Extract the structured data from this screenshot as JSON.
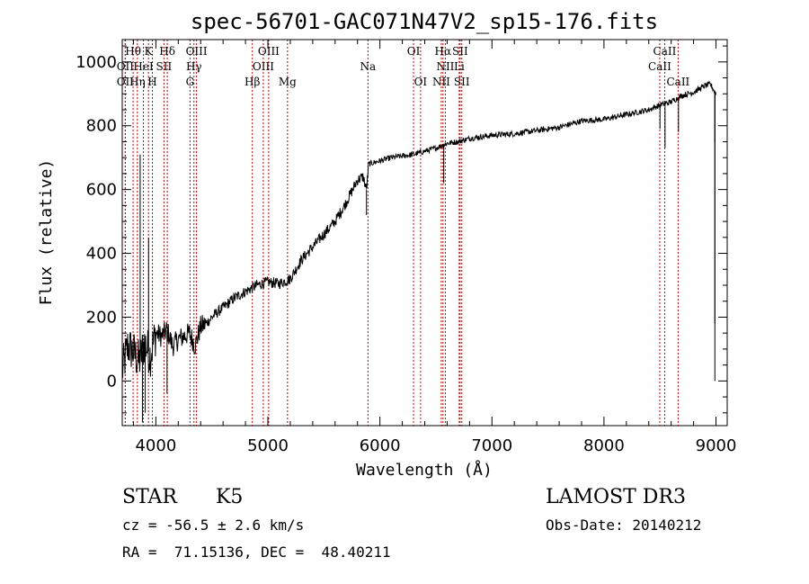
{
  "chart_data": {
    "type": "line",
    "title": "spec-56701-GAC071N47V2_sp15-176.fits",
    "xlabel": "Wavelength (Å)",
    "ylabel": "Flux (relative)",
    "xlim": [
      3700,
      9100
    ],
    "ylim": [
      -140,
      1070
    ],
    "xticks": [
      4000,
      5000,
      6000,
      7000,
      8000,
      9000
    ],
    "yticks": [
      0,
      200,
      400,
      600,
      800,
      1000
    ],
    "spectrum_anchors": [
      [
        3700,
        30
      ],
      [
        3750,
        110
      ],
      [
        3800,
        90
      ],
      [
        3850,
        60
      ],
      [
        3900,
        120
      ],
      [
        3950,
        80
      ],
      [
        4000,
        150
      ],
      [
        4050,
        140
      ],
      [
        4100,
        160
      ],
      [
        4150,
        110
      ],
      [
        4200,
        130
      ],
      [
        4250,
        140
      ],
      [
        4300,
        150
      ],
      [
        4350,
        110
      ],
      [
        4400,
        170
      ],
      [
        4450,
        180
      ],
      [
        4500,
        200
      ],
      [
        4600,
        230
      ],
      [
        4700,
        260
      ],
      [
        4800,
        280
      ],
      [
        4900,
        300
      ],
      [
        5000,
        310
      ],
      [
        5100,
        305
      ],
      [
        5200,
        320
      ],
      [
        5300,
        380
      ],
      [
        5400,
        420
      ],
      [
        5500,
        460
      ],
      [
        5600,
        500
      ],
      [
        5700,
        560
      ],
      [
        5800,
        630
      ],
      [
        5850,
        640
      ],
      [
        5880,
        600
      ],
      [
        5900,
        680
      ],
      [
        6000,
        690
      ],
      [
        6100,
        700
      ],
      [
        6200,
        705
      ],
      [
        6300,
        710
      ],
      [
        6400,
        720
      ],
      [
        6500,
        730
      ],
      [
        6600,
        745
      ],
      [
        6700,
        750
      ],
      [
        6800,
        760
      ],
      [
        6900,
        765
      ],
      [
        7000,
        770
      ],
      [
        7200,
        775
      ],
      [
        7400,
        785
      ],
      [
        7600,
        795
      ],
      [
        7800,
        815
      ],
      [
        8000,
        820
      ],
      [
        8200,
        835
      ],
      [
        8400,
        850
      ],
      [
        8500,
        865
      ],
      [
        8600,
        875
      ],
      [
        8700,
        895
      ],
      [
        8800,
        905
      ],
      [
        8900,
        925
      ],
      [
        8950,
        930
      ],
      [
        9000,
        900
      ]
    ],
    "spikes": [
      [
        3860,
        710
      ],
      [
        3880,
        -130
      ],
      [
        3905,
        -100
      ],
      [
        3935,
        450
      ],
      [
        4100,
        -40
      ],
      [
        5880,
        520
      ],
      [
        6570,
        620
      ],
      [
        8500,
        790
      ],
      [
        8545,
        730
      ],
      [
        8665,
        780
      ],
      [
        8990,
        750
      ],
      [
        8990,
        0
      ],
      [
        8990,
        180
      ]
    ],
    "emission_lines": [
      {
        "label": "Hθ",
        "wavelength": 3797,
        "row": 0
      },
      {
        "label": "OII",
        "wavelength": 3727,
        "row": 1
      },
      {
        "label": "OII",
        "wavelength": 3727,
        "row": 2
      },
      {
        "label": "Hη",
        "wavelength": 3835,
        "row": 2
      },
      {
        "label": "HeI",
        "wavelength": 3889,
        "row": 1
      },
      {
        "label": "K",
        "wavelength": 3934,
        "row": 0
      },
      {
        "label": "H",
        "wavelength": 3969,
        "row": 2
      },
      {
        "label": "SII",
        "wavelength": 4072,
        "row": 1
      },
      {
        "label": "Hδ",
        "wavelength": 4102,
        "row": 0
      },
      {
        "label": "OIII",
        "wavelength": 4363,
        "row": 0
      },
      {
        "label": "Hγ",
        "wavelength": 4340,
        "row": 1
      },
      {
        "label": "G",
        "wavelength": 4305,
        "row": 2
      },
      {
        "label": "OIII",
        "wavelength": 5007,
        "row": 0
      },
      {
        "label": "OIII",
        "wavelength": 4959,
        "row": 1
      },
      {
        "label": "Hβ",
        "wavelength": 4861,
        "row": 2
      },
      {
        "label": "Mg",
        "wavelength": 5175,
        "row": 2
      },
      {
        "label": "Na",
        "wavelength": 5893,
        "row": 1
      },
      {
        "label": "OI",
        "wavelength": 6300,
        "row": 0
      },
      {
        "label": "OI",
        "wavelength": 6363,
        "row": 2
      },
      {
        "label": "Hα",
        "wavelength": 6563,
        "row": 0
      },
      {
        "label": "SII",
        "wavelength": 6716,
        "row": 0
      },
      {
        "label": "NII",
        "wavelength": 6584,
        "row": 1
      },
      {
        "label": "Li",
        "wavelength": 6708,
        "row": 1
      },
      {
        "label": "NII",
        "wavelength": 6548,
        "row": 2
      },
      {
        "label": "SII",
        "wavelength": 6731,
        "row": 2
      },
      {
        "label": "CaII",
        "wavelength": 8542,
        "row": 0
      },
      {
        "label": "CaII",
        "wavelength": 8498,
        "row": 1
      },
      {
        "label": "CaII",
        "wavelength": 8662,
        "row": 2
      }
    ],
    "line_color": "#000000",
    "marker_color": "#cc0000"
  },
  "info": {
    "class": "STAR",
    "subclass": "K5",
    "survey": "LAMOST DR3",
    "cz": "cz = -56.5 ± 2.6 km/s",
    "obs_date": "Obs-Date: 20140212",
    "coords": "RA =  71.15136, DEC =  48.40211"
  }
}
